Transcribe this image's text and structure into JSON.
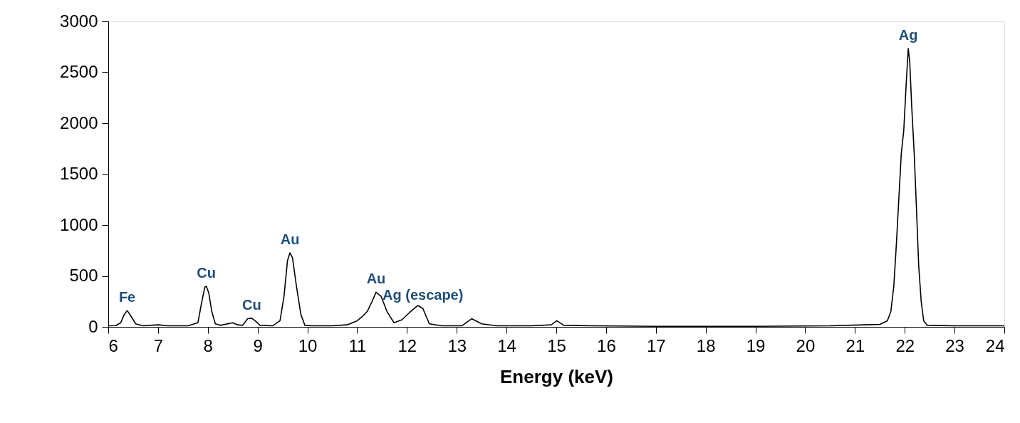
{
  "chart_data": {
    "type": "line",
    "xlabel": "Energy (keV)",
    "xlim": [
      6,
      24
    ],
    "xticks": [
      6,
      7,
      8,
      9,
      10,
      11,
      12,
      13,
      14,
      15,
      16,
      17,
      18,
      19,
      20,
      21,
      22,
      23,
      24
    ],
    "ylim": [
      0,
      3000
    ],
    "yticks": [
      0,
      500,
      1000,
      1500,
      2000,
      2500,
      3000
    ],
    "grid": false,
    "marker": "none",
    "line_style": "solid",
    "series": [
      {
        "color": "#000000",
        "x": [
          6.0,
          6.15,
          6.25,
          6.32,
          6.38,
          6.45,
          6.55,
          6.7,
          7.0,
          7.2,
          7.6,
          7.8,
          7.88,
          7.94,
          7.97,
          8.02,
          8.08,
          8.15,
          8.25,
          8.5,
          8.6,
          8.7,
          8.8,
          8.88,
          8.95,
          9.05,
          9.3,
          9.45,
          9.53,
          9.6,
          9.65,
          9.7,
          9.78,
          9.87,
          9.95,
          10.1,
          10.5,
          10.8,
          11.0,
          11.1,
          11.2,
          11.3,
          11.38,
          11.48,
          11.6,
          11.74,
          11.9,
          12.05,
          12.22,
          12.32,
          12.45,
          12.7,
          13.1,
          13.3,
          13.5,
          13.8,
          14.5,
          14.9,
          15.01,
          15.15,
          15.74,
          17.0,
          19.0,
          20.5,
          21.2,
          21.5,
          21.65,
          21.72,
          21.78,
          21.83,
          21.88,
          21.93,
          21.98,
          22.03,
          22.07,
          22.1,
          22.14,
          22.19,
          22.24,
          22.28,
          22.33,
          22.38,
          22.45,
          23.0,
          24.0
        ],
        "values": [
          10,
          12,
          40,
          120,
          160,
          110,
          30,
          10,
          20,
          10,
          10,
          40,
          250,
          390,
          400,
          330,
          150,
          30,
          15,
          40,
          20,
          15,
          80,
          85,
          60,
          15,
          10,
          60,
          300,
          650,
          727,
          680,
          400,
          120,
          15,
          10,
          10,
          20,
          60,
          100,
          150,
          250,
          340,
          300,
          150,
          40,
          70,
          140,
          210,
          180,
          30,
          10,
          10,
          80,
          30,
          10,
          10,
          20,
          60,
          15,
          10,
          5,
          5,
          10,
          20,
          25,
          60,
          150,
          400,
          800,
          1250,
          1700,
          1930,
          2400,
          2734,
          2600,
          2160,
          1700,
          1100,
          600,
          250,
          60,
          15,
          10,
          10
        ]
      }
    ],
    "annotations": [
      {
        "text": "Fe",
        "x": 6.38,
        "y": 160
      },
      {
        "text": "Cu",
        "x": 7.97,
        "y": 400
      },
      {
        "text": "Cu",
        "x": 8.88,
        "y": 85
      },
      {
        "text": "Au",
        "x": 9.65,
        "y": 727
      },
      {
        "text": "Au",
        "x": 11.38,
        "y": 340
      },
      {
        "text": "Ag (escape)",
        "x": 12.32,
        "y": 180
      },
      {
        "text": "Ag",
        "x": 22.07,
        "y": 2734
      }
    ]
  }
}
